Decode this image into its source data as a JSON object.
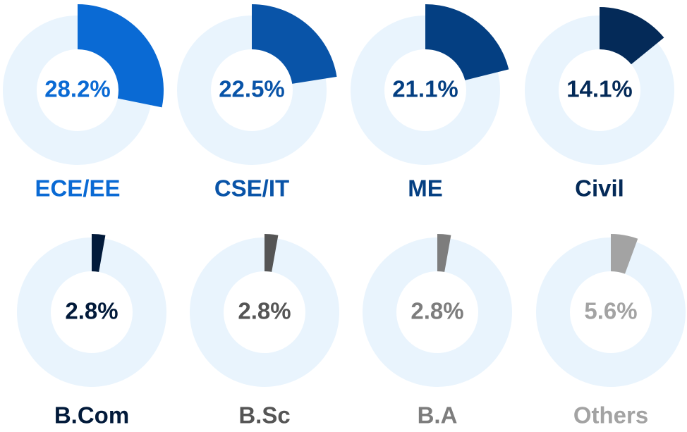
{
  "chart_data": [
    {
      "type": "donut",
      "categories": [
        "ECE/EE"
      ],
      "values": [
        28.2
      ],
      "value_labels": [
        "28.2%"
      ],
      "color": "#0a6ad4"
    },
    {
      "type": "donut",
      "categories": [
        "CSE/IT"
      ],
      "values": [
        22.5
      ],
      "value_labels": [
        "22.5%"
      ],
      "color": "#0954a8"
    },
    {
      "type": "donut",
      "categories": [
        "ME"
      ],
      "values": [
        21.1
      ],
      "value_labels": [
        "21.1%"
      ],
      "color": "#043f82"
    },
    {
      "type": "donut",
      "categories": [
        "Civil"
      ],
      "values": [
        14.1
      ],
      "value_labels": [
        "14.1%"
      ],
      "color": "#042a58"
    },
    {
      "type": "donut",
      "categories": [
        "B.Com"
      ],
      "values": [
        2.8
      ],
      "value_labels": [
        "2.8%"
      ],
      "color": "#021a3a"
    },
    {
      "type": "donut",
      "categories": [
        "B.Sc"
      ],
      "values": [
        2.8
      ],
      "value_labels": [
        "2.8%"
      ],
      "color": "#555555"
    },
    {
      "type": "donut",
      "categories": [
        "B.A"
      ],
      "values": [
        2.8
      ],
      "value_labels": [
        "2.8%"
      ],
      "color": "#7d7d7d"
    },
    {
      "type": "donut",
      "categories": [
        "Others"
      ],
      "values": [
        5.6
      ],
      "value_labels": [
        "5.6%"
      ],
      "color": "#a3a3a3"
    }
  ]
}
